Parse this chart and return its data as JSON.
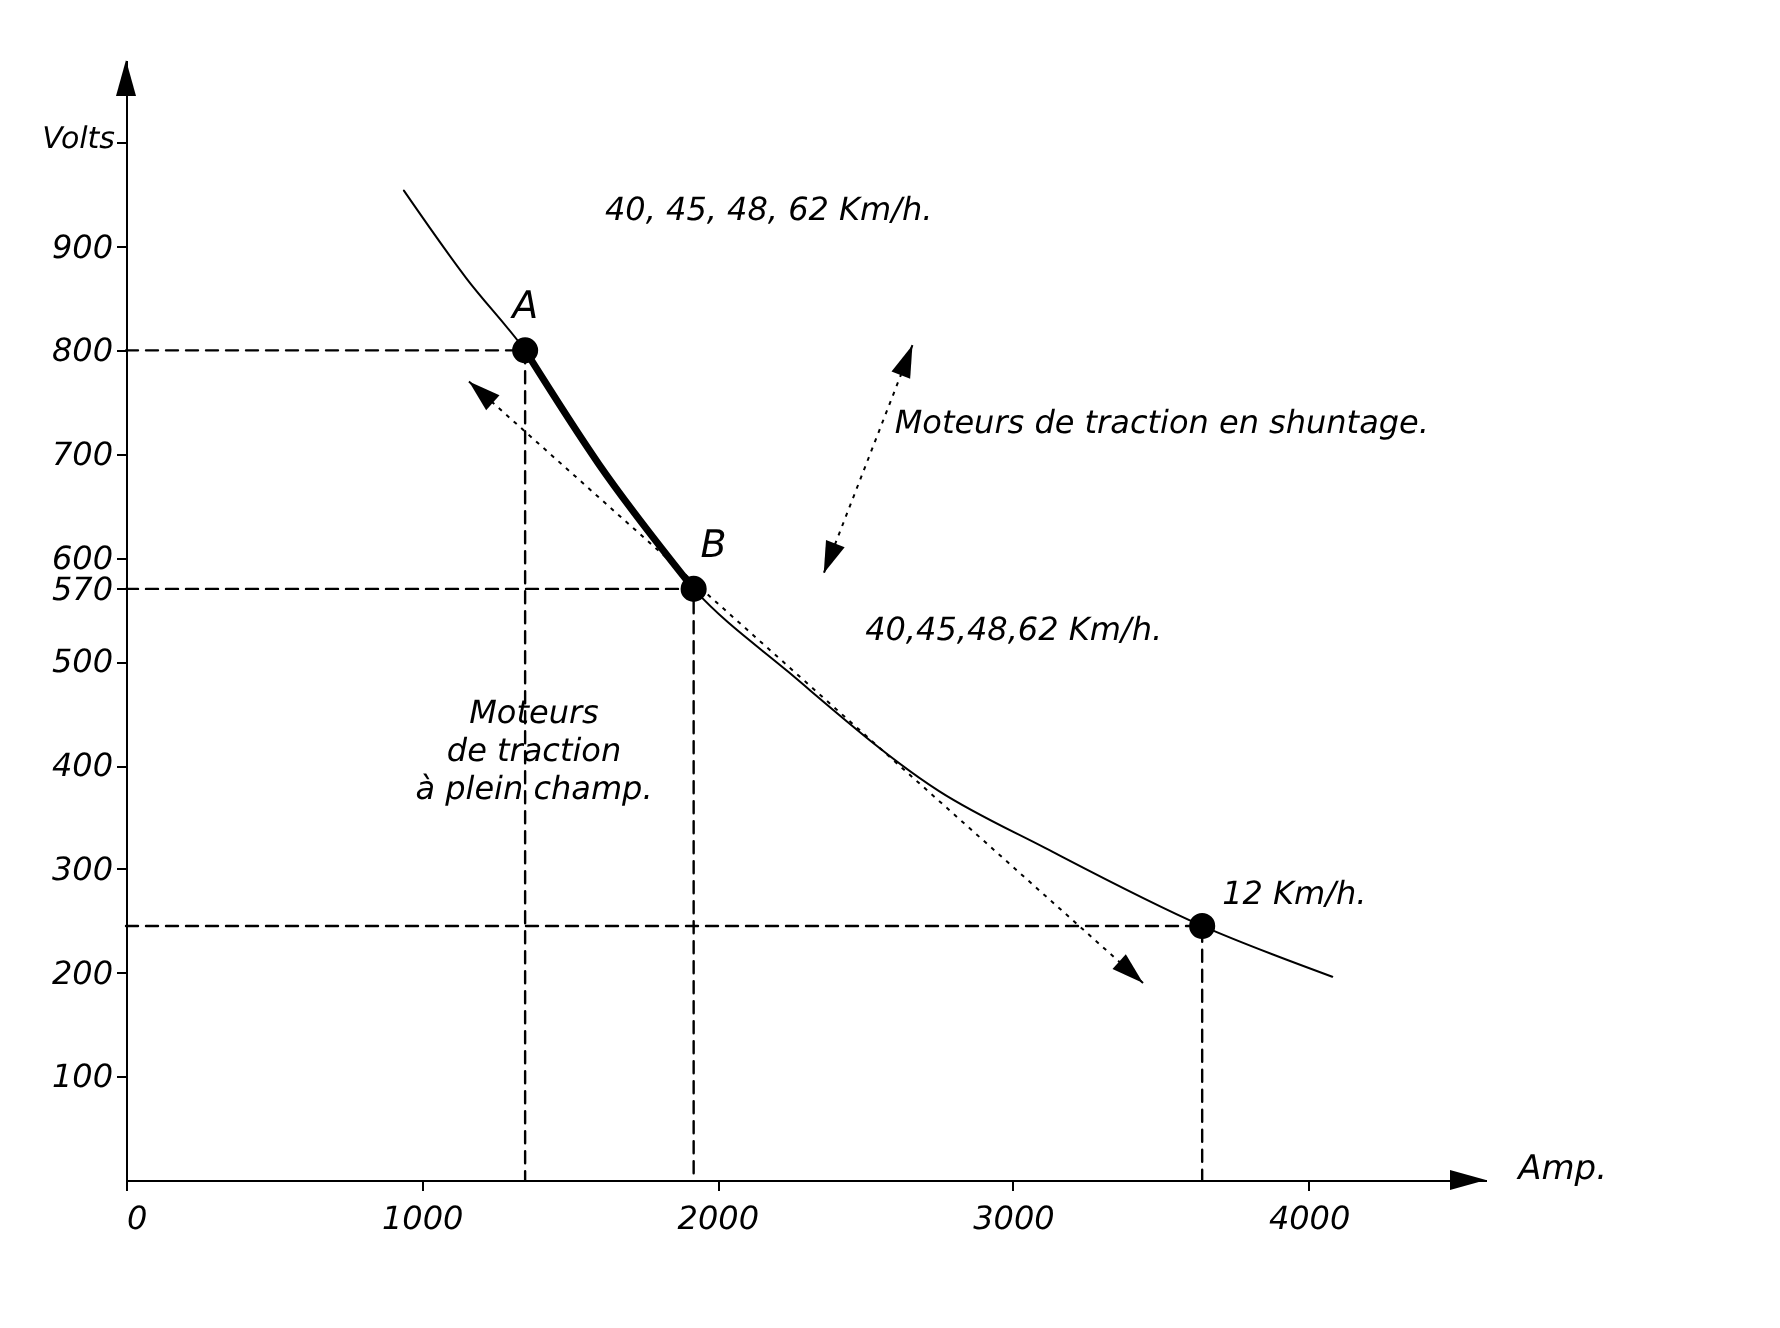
{
  "chart_data": {
    "type": "line",
    "xlabel": "Amp.",
    "ylabel": "Volts",
    "xlim": [
      0,
      4600
    ],
    "ylim": [
      0,
      1080
    ],
    "xticks": [
      0,
      1000,
      2000,
      3000,
      4000
    ],
    "yticks": [
      100,
      200,
      300,
      400,
      500,
      570,
      600,
      700,
      800,
      900,
      {
        "value": 1000,
        "label": null
      }
    ],
    "grid": false,
    "series": [
      {
        "color": "#000000",
        "line_style": "solid",
        "x": [
          940,
          1150,
          1350,
          1600,
          1920,
          2240,
          2750,
          3110,
          3640,
          4080
        ],
        "values": [
          954,
          870,
          800,
          690,
          570,
          490,
          375,
          320,
          245,
          196
        ]
      },
      {
        "color": "#000000",
        "line_style": "solid",
        "x": [
          1350,
          1600,
          1920
        ],
        "values": [
          800,
          690,
          570
        ]
      },
      {
        "color": "#000000",
        "line_style": "dashed",
        "x": [
          0,
          1350,
          1350
        ],
        "values": [
          800,
          800,
          0
        ]
      },
      {
        "color": "#000000",
        "line_style": "dashed",
        "x": [
          0,
          1920,
          1920
        ],
        "values": [
          570,
          570,
          0
        ]
      },
      {
        "color": "#000000",
        "line_style": "dashed",
        "x": [
          0,
          3640,
          3640
        ],
        "values": [
          245,
          245,
          0
        ]
      },
      {
        "type": "scatter",
        "color": "#000000",
        "marker": "circle",
        "x": [
          1350,
          1920,
          3640
        ],
        "values": [
          800,
          570,
          245
        ]
      }
    ],
    "annotations": [
      {
        "text": "A",
        "x": 1350,
        "y": 800
      },
      {
        "text": "B",
        "x": 1920,
        "y": 570
      },
      "40, 45, 48, 62 Km/h.",
      "40,45,48,62 Km/h.",
      {
        "text": "12 Km/h.",
        "x": 3640,
        "y": 245
      },
      "Moteurs de traction en shuntage.",
      "Moteurs de traction à plein champ."
    ]
  }
}
